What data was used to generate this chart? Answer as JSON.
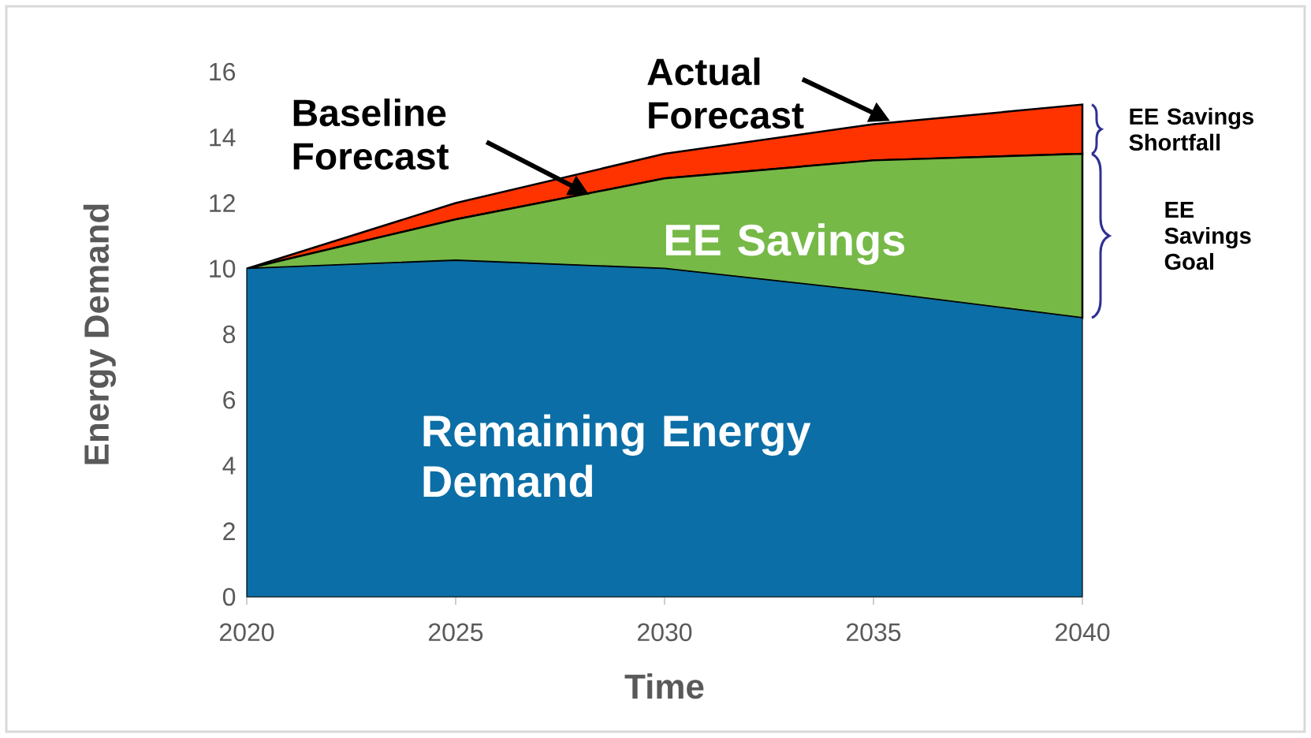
{
  "chart_data": {
    "type": "area",
    "stacked": true,
    "marker": "none",
    "x": [
      2020,
      2025,
      2030,
      2035,
      2040
    ],
    "xlabel": "Time",
    "ylabel": "Energy Demand",
    "xlim": [
      2020,
      2040
    ],
    "xticks": [
      2020,
      2025,
      2030,
      2035,
      2040
    ],
    "ylim": [
      0,
      16
    ],
    "yticks": [
      0,
      2,
      4,
      6,
      8,
      10,
      12,
      14,
      16
    ],
    "series": [
      {
        "name": "Remaining Energy Demand",
        "color": "#0b6ea6",
        "values": [
          10,
          10.25,
          10,
          9.3,
          8.5
        ]
      },
      {
        "name": "EE Savings",
        "color": "#76b947",
        "values": [
          0,
          1.25,
          2.75,
          4,
          5
        ]
      },
      {
        "name": "EE Savings Shortfall",
        "color": "#ff3300",
        "values": [
          0,
          0.5,
          0.75,
          1.1,
          1.5
        ]
      }
    ],
    "annotations": [
      "Baseline Forecast",
      "Actual Forecast",
      "EE Savings Goal"
    ]
  }
}
